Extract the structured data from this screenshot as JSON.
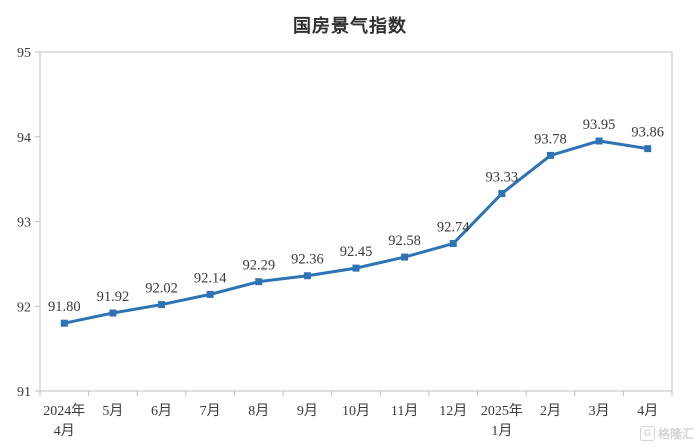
{
  "chart_data": {
    "type": "line",
    "title": "国房景气指数",
    "categories": [
      "2024年\n4月",
      "5月",
      "6月",
      "7月",
      "8月",
      "9月",
      "10月",
      "11月",
      "12月",
      "2025年\n1月",
      "2月",
      "3月",
      "4月"
    ],
    "values": [
      91.8,
      91.92,
      92.02,
      92.14,
      92.29,
      92.36,
      92.45,
      92.58,
      92.74,
      93.33,
      93.78,
      93.95,
      93.86
    ],
    "data_labels": [
      "91.80",
      "91.92",
      "92.02",
      "92.14",
      "92.29",
      "92.36",
      "92.45",
      "92.58",
      "92.74",
      "93.33",
      "93.78",
      "93.95",
      "93.86"
    ],
    "xlabel": "",
    "ylabel": "",
    "ylim": [
      91,
      95
    ],
    "y_ticks": [
      "95",
      "94",
      "93",
      "92",
      "91"
    ],
    "y_tick_values": [
      95,
      94,
      93,
      92,
      91
    ],
    "grid": false,
    "legend": "none",
    "line_color": "#2E74B5",
    "marker": "square",
    "axis_color": "#BFBFBF",
    "label_color": "#3A3A3A"
  },
  "watermark": {
    "logo_letter": "G",
    "text": "格隆汇"
  }
}
